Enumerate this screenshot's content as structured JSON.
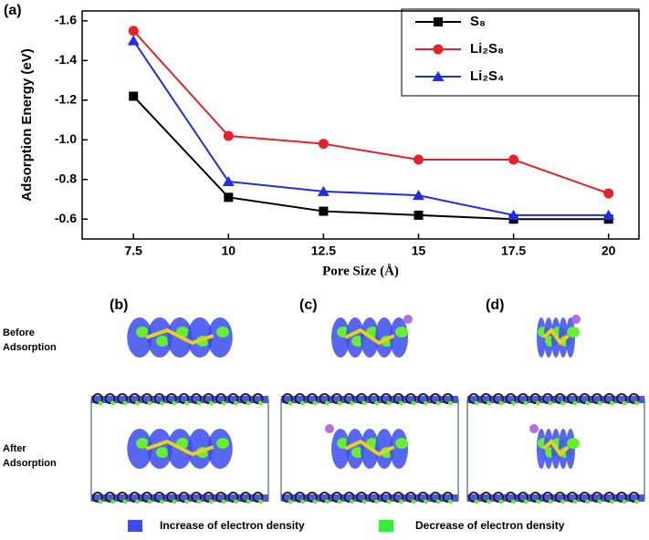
{
  "chart_data": {
    "type": "line",
    "panel_label": "(a)",
    "x_label": "Pore Size (Å)",
    "y_label": "Adsorption Energy (eV)",
    "x": [
      7.5,
      10,
      12.5,
      15,
      17.5,
      20
    ],
    "series": [
      {
        "name": "S₈",
        "color": "#000000",
        "marker": "square",
        "values": [
          -1.22,
          -0.71,
          -0.64,
          -0.62,
          -0.6,
          -0.6
        ]
      },
      {
        "name": "Li₂S₈",
        "color": "#e8202a",
        "marker": "circle",
        "values": [
          -1.55,
          -1.02,
          -0.98,
          -0.9,
          -0.9,
          -0.73
        ]
      },
      {
        "name": "Li₂S₄",
        "color": "#1f2fe0",
        "marker": "triangle",
        "values": [
          -1.5,
          -0.79,
          -0.74,
          -0.72,
          -0.62,
          -0.62
        ]
      }
    ],
    "xlim": [
      6.15,
      20.8
    ],
    "xticks": [
      7.5,
      10,
      12.5,
      15,
      17.5,
      20
    ],
    "ylim": [
      -0.5,
      -1.65
    ],
    "yticks": [
      -0.6,
      -0.8,
      {
        "value": -1,
        "label": "-1.0"
      },
      -1.2,
      -1.4,
      -1.6
    ],
    "legend": "top-right",
    "grid": false
  },
  "panels": [
    {
      "label": "(b)"
    },
    {
      "label": "(c)"
    },
    {
      "label": "(d)"
    }
  ],
  "row_labels": [
    [
      "Before",
      "Adsorption"
    ],
    [
      "After",
      "Adsorption"
    ]
  ],
  "density_legend": [
    {
      "label": "Increase of electron density",
      "color": "#3b4cf0"
    },
    {
      "label": "Decrease of electron density",
      "color": "#33ee33"
    }
  ]
}
